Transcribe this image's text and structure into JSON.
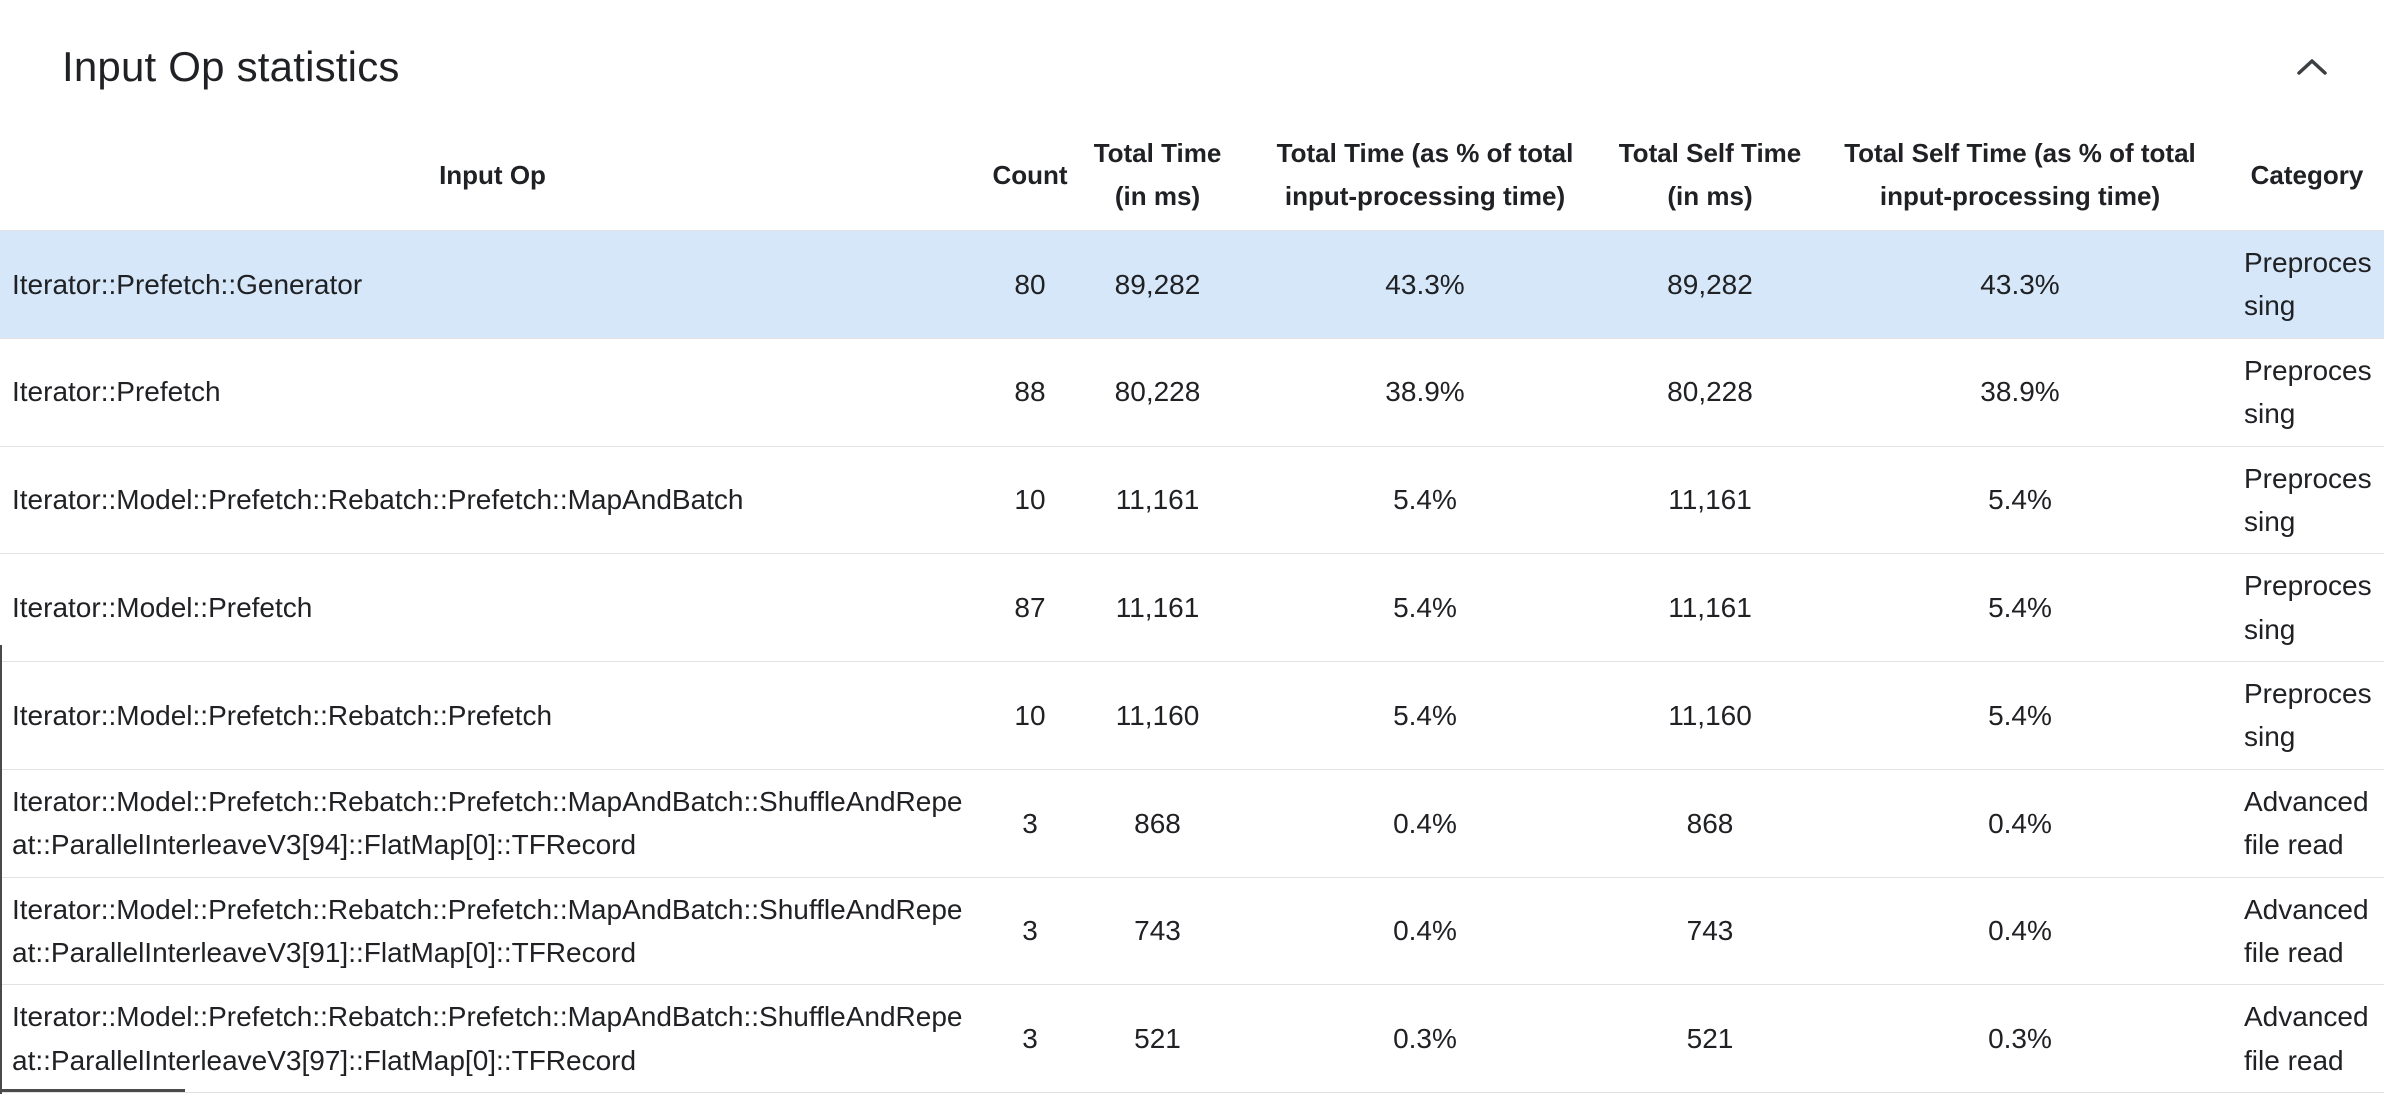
{
  "card": {
    "title": "Input Op statistics"
  },
  "table": {
    "columns": [
      "Input Op",
      "Count",
      "Total Time (in ms)",
      "Total Time (as % of total input-processing time)",
      "Total Self Time (in ms)",
      "Total Self Time (as % of total input-processing time)",
      "Category"
    ],
    "rows": [
      {
        "input_op": "Iterator::Prefetch::Generator",
        "count": "80",
        "total_time": "89,282",
        "total_time_pct": "43.3%",
        "total_self_time": "89,282",
        "total_self_time_pct": "43.3%",
        "category": "Preprocessing",
        "selected": true
      },
      {
        "input_op": "Iterator::Prefetch",
        "count": "88",
        "total_time": "80,228",
        "total_time_pct": "38.9%",
        "total_self_time": "80,228",
        "total_self_time_pct": "38.9%",
        "category": "Preprocessing",
        "selected": false
      },
      {
        "input_op": "Iterator::Model::Prefetch::Rebatch::Prefetch::MapAndBatch",
        "count": "10",
        "total_time": "11,161",
        "total_time_pct": "5.4%",
        "total_self_time": "11,161",
        "total_self_time_pct": "5.4%",
        "category": "Preprocessing",
        "selected": false
      },
      {
        "input_op": "Iterator::Model::Prefetch",
        "count": "87",
        "total_time": "11,161",
        "total_time_pct": "5.4%",
        "total_self_time": "11,161",
        "total_self_time_pct": "5.4%",
        "category": "Preprocessing",
        "selected": false
      },
      {
        "input_op": "Iterator::Model::Prefetch::Rebatch::Prefetch",
        "count": "10",
        "total_time": "11,160",
        "total_time_pct": "5.4%",
        "total_self_time": "11,160",
        "total_self_time_pct": "5.4%",
        "category": "Preprocessing",
        "selected": false
      },
      {
        "input_op": "Iterator::Model::Prefetch::Rebatch::Prefetch::MapAndBatch::ShuffleAndRepeat::ParallelInterleaveV3[94]::FlatMap[0]::TFRecord",
        "count": "3",
        "total_time": "868",
        "total_time_pct": "0.4%",
        "total_self_time": "868",
        "total_self_time_pct": "0.4%",
        "category": "Advanced file read",
        "selected": false
      },
      {
        "input_op": "Iterator::Model::Prefetch::Rebatch::Prefetch::MapAndBatch::ShuffleAndRepeat::ParallelInterleaveV3[91]::FlatMap[0]::TFRecord",
        "count": "3",
        "total_time": "743",
        "total_time_pct": "0.4%",
        "total_self_time": "743",
        "total_self_time_pct": "0.4%",
        "category": "Advanced file read",
        "selected": false
      },
      {
        "input_op": "Iterator::Model::Prefetch::Rebatch::Prefetch::MapAndBatch::ShuffleAndRepeat::ParallelInterleaveV3[97]::FlatMap[0]::TFRecord",
        "count": "3",
        "total_time": "521",
        "total_time_pct": "0.3%",
        "total_self_time": "521",
        "total_self_time_pct": "0.3%",
        "category": "Advanced file read",
        "selected": false
      }
    ]
  },
  "colors": {
    "selected_row_background": "#d5e7f8",
    "row_border": "#e2e2e2",
    "text": "#202124"
  }
}
